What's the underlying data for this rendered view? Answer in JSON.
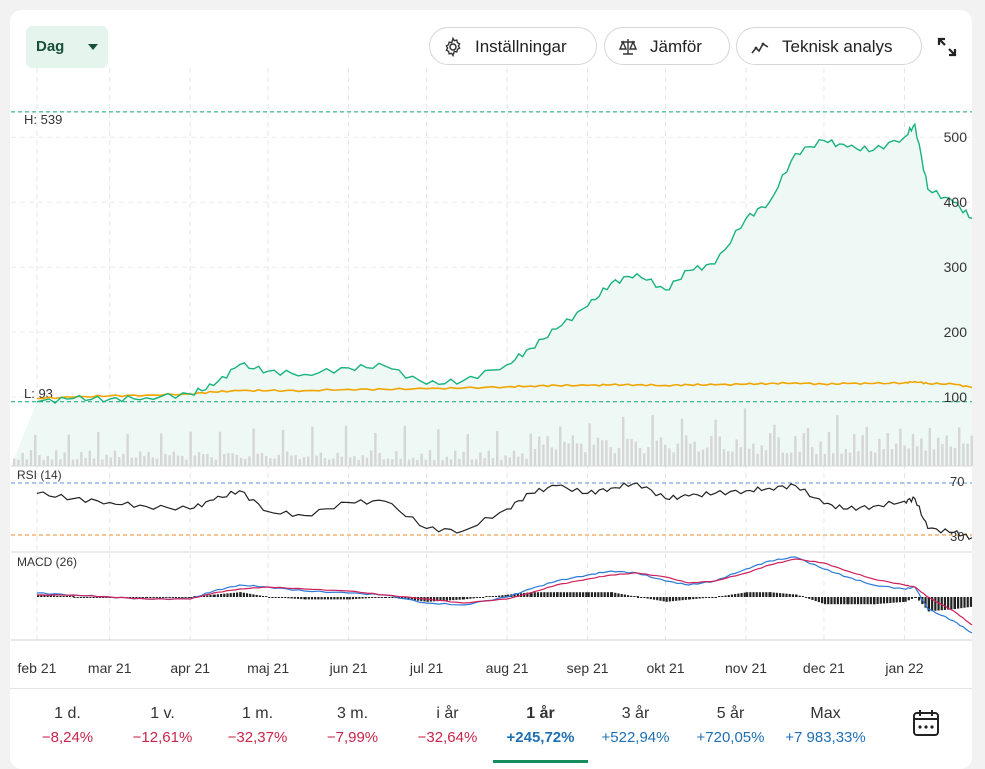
{
  "toolbar": {
    "interval_label": "Dag",
    "settings_label": "Inställningar",
    "compare_label": "Jämför",
    "analysis_label": "Teknisk analys"
  },
  "chart_data": {
    "type": "line",
    "x_tick_labels": [
      "feb 21",
      "mar 21",
      "apr 21",
      "maj 21",
      "jun 21",
      "jul 21",
      "aug 21",
      "sep 21",
      "okt 21",
      "nov 21",
      "dec 21",
      "jan 22"
    ],
    "high_label": "H: 539",
    "low_label": "L: 93",
    "high_value": 539,
    "low_value": 93,
    "y_ticks": [
      100,
      200,
      300,
      400,
      500
    ],
    "ylim": [
      91,
      545
    ],
    "colors": {
      "price": "#19b37d",
      "compare": "#f0a500",
      "rsi": "#222222",
      "macd": "#2b7ad8",
      "signal": "#d0205a",
      "ref": "#11a37a"
    },
    "price_series": {
      "name": "",
      "x": [
        "2021-02-01",
        "2021-02-15",
        "2021-03-01",
        "2021-03-15",
        "2021-04-01",
        "2021-04-10",
        "2021-04-20",
        "2021-05-01",
        "2021-05-15",
        "2021-06-01",
        "2021-06-15",
        "2021-07-01",
        "2021-07-15",
        "2021-08-01",
        "2021-08-10",
        "2021-08-20",
        "2021-09-01",
        "2021-09-10",
        "2021-09-20",
        "2021-10-01",
        "2021-10-10",
        "2021-10-20",
        "2021-11-01",
        "2021-11-10",
        "2021-11-20",
        "2021-12-01",
        "2021-12-10",
        "2021-12-20",
        "2022-01-01",
        "2022-01-05",
        "2022-01-10",
        "2022-01-20",
        "2022-01-27"
      ],
      "values": [
        93,
        98,
        97,
        99,
        105,
        118,
        150,
        140,
        135,
        145,
        148,
        120,
        125,
        150,
        175,
        205,
        240,
        275,
        290,
        265,
        295,
        305,
        375,
        400,
        475,
        495,
        485,
        480,
        500,
        520,
        420,
        400,
        375
      ]
    },
    "compare_series": {
      "name": "",
      "values": [
        98,
        100,
        102,
        103,
        105,
        108,
        110,
        110,
        110,
        112,
        112,
        113,
        114,
        116,
        117,
        118,
        118,
        119,
        119,
        118,
        119,
        119,
        120,
        121,
        122,
        120,
        121,
        121,
        122,
        124,
        121,
        120,
        115
      ]
    },
    "rsi": {
      "label": "RSI (14)",
      "levels": [
        70,
        30
      ],
      "values": [
        62,
        58,
        55,
        52,
        50,
        57,
        64,
        48,
        45,
        55,
        56,
        35,
        33,
        50,
        62,
        68,
        62,
        66,
        70,
        58,
        60,
        62,
        64,
        66,
        68,
        54,
        50,
        52,
        56,
        58,
        35,
        32,
        28
      ]
    },
    "macd": {
      "label": "MACD (26)",
      "macd": [
        2,
        1,
        0,
        -1,
        -1,
        3,
        6,
        5,
        3,
        2,
        1,
        -3,
        -4,
        0,
        4,
        8,
        11,
        13,
        12,
        8,
        6,
        8,
        14,
        18,
        20,
        14,
        10,
        6,
        4,
        5,
        -6,
        -12,
        -18
      ],
      "signal": [
        1,
        1,
        0,
        -1,
        -1,
        2,
        4,
        5,
        4,
        3,
        1,
        -1,
        -3,
        -1,
        2,
        6,
        9,
        11,
        12,
        10,
        7,
        8,
        12,
        16,
        19,
        17,
        13,
        9,
        6,
        5,
        0,
        -7,
        -14
      ]
    }
  },
  "periods": [
    {
      "label": "1 d.",
      "value": "−8,24%",
      "tone": "neg"
    },
    {
      "label": "1 v.",
      "value": "−12,61%",
      "tone": "neg"
    },
    {
      "label": "1 m.",
      "value": "−32,37%",
      "tone": "neg"
    },
    {
      "label": "3 m.",
      "value": "−7,99%",
      "tone": "neg"
    },
    {
      "label": "i år",
      "value": "−32,64%",
      "tone": "neg"
    },
    {
      "label": "1 år",
      "value": "+245,72%",
      "tone": "pos",
      "active": true
    },
    {
      "label": "3 år",
      "value": "+522,94%",
      "tone": "pos"
    },
    {
      "label": "5 år",
      "value": "+720,05%",
      "tone": "pos"
    },
    {
      "label": "Max",
      "value": "+7 983,33%",
      "tone": "pos"
    }
  ]
}
